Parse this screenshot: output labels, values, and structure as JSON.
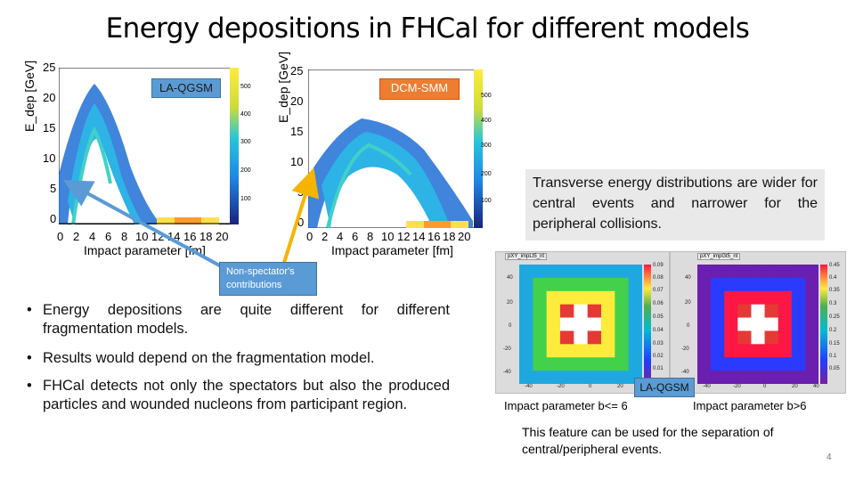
{
  "title": "Energy depositions in FHCal for different models",
  "plots": [
    {
      "model_label": "LA-QGSM",
      "label_color": "#5b9bd5",
      "ylabel": "E_dep [GeV]",
      "xlabel": "Impact parameter [fm]",
      "yticks": [
        "25",
        "20",
        "15",
        "10",
        "5",
        "0"
      ],
      "xticks": [
        "0",
        "2",
        "4",
        "6",
        "8",
        "10",
        "12",
        "14",
        "16",
        "18",
        "20"
      ],
      "zticks": [
        "500",
        "400",
        "300",
        "200",
        "100"
      ]
    },
    {
      "model_label": "DCM-SMM",
      "label_color": "#ed7d31",
      "ylabel": "E_dep [GeV]",
      "xlabel": "Impact parameter [fm]",
      "yticks": [
        "25",
        "20",
        "15",
        "10",
        "5",
        "0"
      ],
      "xticks": [
        "0",
        "2",
        "4",
        "6",
        "8",
        "10",
        "12",
        "14",
        "16",
        "18",
        "20"
      ],
      "zticks": [
        "500",
        "400",
        "300",
        "200",
        "100"
      ]
    }
  ],
  "callout": "Non-spectator's contributions",
  "transverse_note": "Transverse energy distributions are wider for central events and narrower for the peripheral collisions.",
  "bullets": [
    "Energy depositions  are quite  different for different fragmentation models.",
    "Results would depend on the fragmentation model.",
    "FHCal detects not only the spectators but also the produced particles and wounded nucleons from participant region."
  ],
  "maps": {
    "left_title": "pXY_impLt5_nt",
    "right_title": "pXY_impGt5_nt",
    "left_zticks": [
      "0.09",
      "0.08",
      "0.07",
      "0.06",
      "0.05",
      "0.04",
      "0.03",
      "0.02",
      "0.01"
    ],
    "right_zticks": [
      "0.45",
      "0.4",
      "0.35",
      "0.3",
      "0.25",
      "0.2",
      "0.15",
      "0.1",
      "0.05"
    ],
    "ylabels": [
      "40",
      "20",
      "0",
      "-20",
      "-40"
    ],
    "xlabels": [
      "-40",
      "-20",
      "0",
      "20",
      "40"
    ],
    "model_label": "LA-QGSM",
    "left_caption": "Impact parameter  b<= 6",
    "right_caption": "Impact parameter  b>6"
  },
  "bottom_note": "This feature can be used for the separation of central/peripheral events.",
  "page_number": "4"
}
